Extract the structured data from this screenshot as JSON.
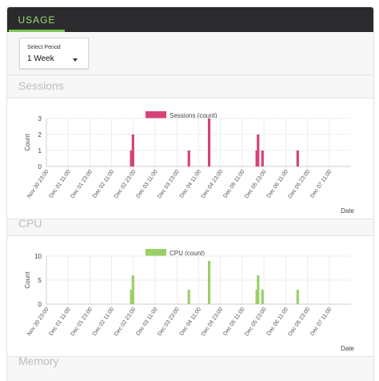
{
  "header": {
    "tab_label": "USAGE"
  },
  "period": {
    "label": "Select Period",
    "value": "1 Week"
  },
  "sections": {
    "sessions": "Sessions",
    "cpu": "CPU",
    "memory": "Memory"
  },
  "chart_data": [
    {
      "id": "sessions",
      "type": "bar",
      "legend": "Sessions (count)",
      "ylabel": "Count",
      "xlabel": "Date",
      "color": "#d6427a",
      "ylim": [
        0,
        3
      ],
      "yticks": [
        0,
        1,
        2,
        3
      ],
      "xticks": [
        "Nov 30 23:00",
        "Dec 01 11:00",
        "Dec 01 23:00",
        "Dec 02 11:00",
        "Dec 02 23:00",
        "Dec 03 11:00",
        "Dec 03 23:00",
        "Dec 04 11:00",
        "Dec 04 23:00",
        "Dec 05 11:00",
        "Dec 05 23:00",
        "Dec 06 11:00",
        "Dec 06 23:00",
        "Dec 07 11:00"
      ],
      "points": [
        {
          "x": 3.9,
          "y": 1
        },
        {
          "x": 3.98,
          "y": 2
        },
        {
          "x": 6.55,
          "y": 1
        },
        {
          "x": 7.48,
          "y": 3
        },
        {
          "x": 9.67,
          "y": 1
        },
        {
          "x": 9.73,
          "y": 2
        },
        {
          "x": 9.93,
          "y": 1
        },
        {
          "x": 11.55,
          "y": 1
        }
      ]
    },
    {
      "id": "cpu",
      "type": "bar",
      "legend": "CPU (count)",
      "ylabel": "Count",
      "xlabel": "Date",
      "color": "#9bcf68",
      "ylim": [
        0,
        10
      ],
      "yticks": [
        0,
        5,
        10
      ],
      "xticks": [
        "Nov 30 23:00",
        "Dec 01 11:00",
        "Dec 01 23:00",
        "Dec 02 11:00",
        "Dec 02 23:00",
        "Dec 03 11:00",
        "Dec 03 23:00",
        "Dec 04 11:00",
        "Dec 04 23:00",
        "Dec 05 11:00",
        "Dec 05 23:00",
        "Dec 06 11:00",
        "Dec 06 23:00",
        "Dec 07 11:00"
      ],
      "points": [
        {
          "x": 3.9,
          "y": 3
        },
        {
          "x": 3.98,
          "y": 6
        },
        {
          "x": 6.55,
          "y": 3
        },
        {
          "x": 7.48,
          "y": 9
        },
        {
          "x": 9.67,
          "y": 3
        },
        {
          "x": 9.73,
          "y": 6
        },
        {
          "x": 9.93,
          "y": 3
        },
        {
          "x": 11.55,
          "y": 3
        }
      ]
    }
  ]
}
